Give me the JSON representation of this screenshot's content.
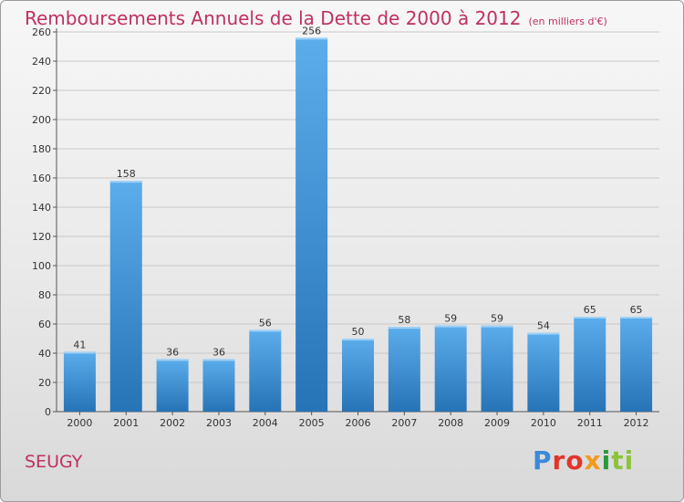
{
  "title": "Remboursements Annuels de la Dette de 2000 à 2012",
  "unit_note": "(en milliers d'€)",
  "commune": "SEUGY",
  "logo": {
    "p1": "P",
    "p2": "ro",
    "p3": "x",
    "p4": "i",
    "p5": "ti"
  },
  "colors": {
    "bar": "#3f93d8",
    "bar_light": "#5aaaea",
    "bar_dark": "#2a74b8",
    "title": "#c0305f",
    "grid": "#c8c8c8"
  },
  "chart_data": {
    "type": "bar",
    "categories": [
      "2000",
      "2001",
      "2002",
      "2003",
      "2004",
      "2005",
      "2006",
      "2007",
      "2008",
      "2009",
      "2010",
      "2011",
      "2012"
    ],
    "values": [
      41,
      158,
      36,
      36,
      56,
      256,
      50,
      58,
      59,
      59,
      54,
      65,
      65
    ],
    "ylim": [
      0,
      260
    ],
    "yticks": [
      0,
      20,
      40,
      60,
      80,
      100,
      120,
      140,
      160,
      180,
      200,
      220,
      240,
      260
    ],
    "grid": true
  }
}
